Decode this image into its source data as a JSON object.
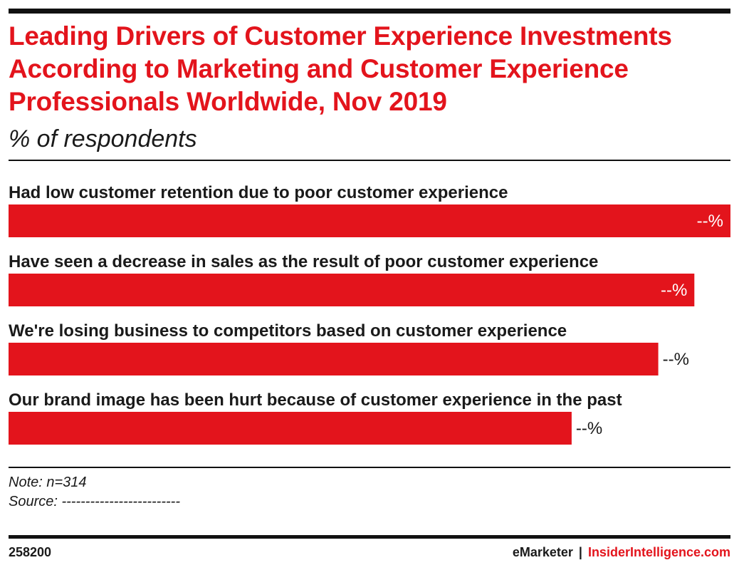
{
  "header": {
    "title": "Leading Drivers of Customer Experience Investments According to Marketing and Customer Experience Professionals Worldwide, Nov 2019",
    "subtitle": "% of respondents"
  },
  "chart_data": {
    "type": "bar",
    "orientation": "horizontal",
    "categories": [
      "Had low customer retention due to poor customer experience",
      "Have seen a decrease in sales as the result of poor customer experience",
      "We're losing business to competitors based on customer experience",
      "Our brand image has been hurt because of customer experience in the past"
    ],
    "values": [
      1.0,
      0.95,
      0.9,
      0.78
    ],
    "value_labels": [
      "--%",
      "--%",
      "--%",
      "--%"
    ],
    "bar_color": "#e3141c",
    "grid": false
  },
  "footer": {
    "note": "Note: n=314",
    "source": "Source: -------------------------",
    "chart_id": "258200",
    "brand_left": "eMarketer",
    "brand_sep": "|",
    "brand_right": "InsiderIntelligence.com"
  },
  "colors": {
    "accent": "#e3141c",
    "text": "#1a1a1a",
    "rule": "#111111"
  }
}
